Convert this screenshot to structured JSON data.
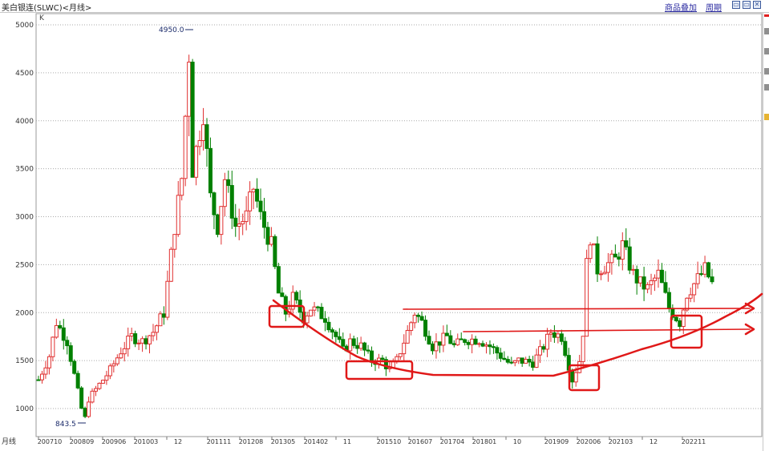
{
  "header": {
    "title": "美白银连(SLWC)<月线>",
    "menu_overlay": "商品叠加",
    "menu_period": "周期",
    "y_unit": "K"
  },
  "chart_data": {
    "type": "candlestick",
    "title": "美白银连(SLWC)<月线>",
    "ylim": [
      843.5,
      5100
    ],
    "yticks": [
      1000,
      1500,
      2000,
      2500,
      3000,
      3500,
      4000,
      4500,
      5000
    ],
    "x_label_prefix": "月线",
    "x_tick_labels": [
      "200710",
      "200809",
      "200906",
      "201003",
      "12",
      "201111",
      "201208",
      "201305",
      "201402",
      "11",
      "201510",
      "201607",
      "201704",
      "201801",
      "10",
      "201909",
      "202006",
      "202103",
      "12",
      "202211"
    ],
    "annotations": {
      "max_label": "4950.0",
      "min_label": "843.5",
      "max_value": 4950.0,
      "min_value": 843.5
    },
    "price_path": [
      [
        "200710",
        1300
      ],
      [
        "200801",
        1550
      ],
      [
        "200803",
        1900
      ],
      [
        "200806",
        1700
      ],
      [
        "200808",
        1350
      ],
      [
        "200810",
        1000
      ],
      [
        "200811",
        900
      ],
      [
        "200812",
        1100
      ],
      [
        "200903",
        1250
      ],
      [
        "200906",
        1400
      ],
      [
        "200909",
        1600
      ],
      [
        "200912",
        1750
      ],
      [
        "201003",
        1700
      ],
      [
        "201006",
        1800
      ],
      [
        "201009",
        2000
      ],
      [
        "201012",
        2900
      ],
      [
        "201102",
        3400
      ],
      [
        "201104",
        4700
      ],
      [
        "201105",
        3500
      ],
      [
        "201107",
        3900
      ],
      [
        "201108",
        4100
      ],
      [
        "201110",
        3200
      ],
      [
        "201112",
        2900
      ],
      [
        "201202",
        3400
      ],
      [
        "201205",
        2900
      ],
      [
        "201208",
        3000
      ],
      [
        "201210",
        3300
      ],
      [
        "201212",
        3000
      ],
      [
        "201303",
        2700
      ],
      [
        "201305",
        2200
      ],
      [
        "201307",
        2000
      ],
      [
        "201309",
        2150
      ],
      [
        "201312",
        1950
      ],
      [
        "201402",
        2050
      ],
      [
        "201406",
        1950
      ],
      [
        "201409",
        1750
      ],
      [
        "201411",
        1600
      ],
      [
        "201501",
        1700
      ],
      [
        "201504",
        1650
      ],
      [
        "201507",
        1500
      ],
      [
        "201510",
        1500
      ],
      [
        "201512",
        1400
      ],
      [
        "201602",
        1500
      ],
      [
        "201604",
        1700
      ],
      [
        "201607",
        2000
      ],
      [
        "201609",
        1900
      ],
      [
        "201612",
        1650
      ],
      [
        "201704",
        1750
      ],
      [
        "201706",
        1650
      ],
      [
        "201709",
        1720
      ],
      [
        "201801",
        1720
      ],
      [
        "201804",
        1650
      ],
      [
        "201807",
        1550
      ],
      [
        "201810",
        1450
      ],
      [
        "201812",
        1500
      ],
      [
        "201904",
        1480
      ],
      [
        "201907",
        1650
      ],
      [
        "201909",
        1800
      ],
      [
        "201912",
        1750
      ],
      [
        "202003",
        1300
      ],
      [
        "202005",
        1500
      ],
      [
        "202006",
        1800
      ],
      [
        "202007",
        2500
      ],
      [
        "202008",
        2800
      ],
      [
        "202010",
        2450
      ],
      [
        "202103",
        2550
      ],
      [
        "202105",
        2700
      ],
      [
        "202108",
        2400
      ],
      [
        "202110",
        2300
      ],
      [
        "202112",
        2250
      ],
      [
        "202203",
        2400
      ],
      [
        "202206",
        2050
      ],
      [
        "202209",
        1900
      ],
      [
        "202211",
        2200
      ],
      [
        "202302",
        2350
      ],
      [
        "202304",
        2450
      ],
      [
        "202306",
        2300
      ]
    ]
  }
}
